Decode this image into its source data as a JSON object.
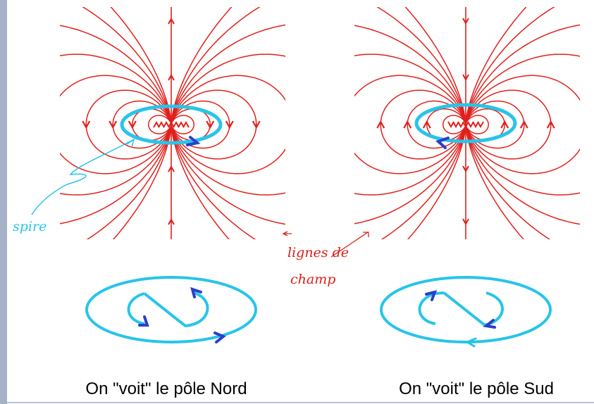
{
  "labels": {
    "coil": "spire",
    "field_lines": [
      "lignes de",
      "champ"
    ]
  },
  "captions": [
    "On \"voit\" le pôle Nord",
    "On \"voit\" le pôle Sud"
  ]
}
